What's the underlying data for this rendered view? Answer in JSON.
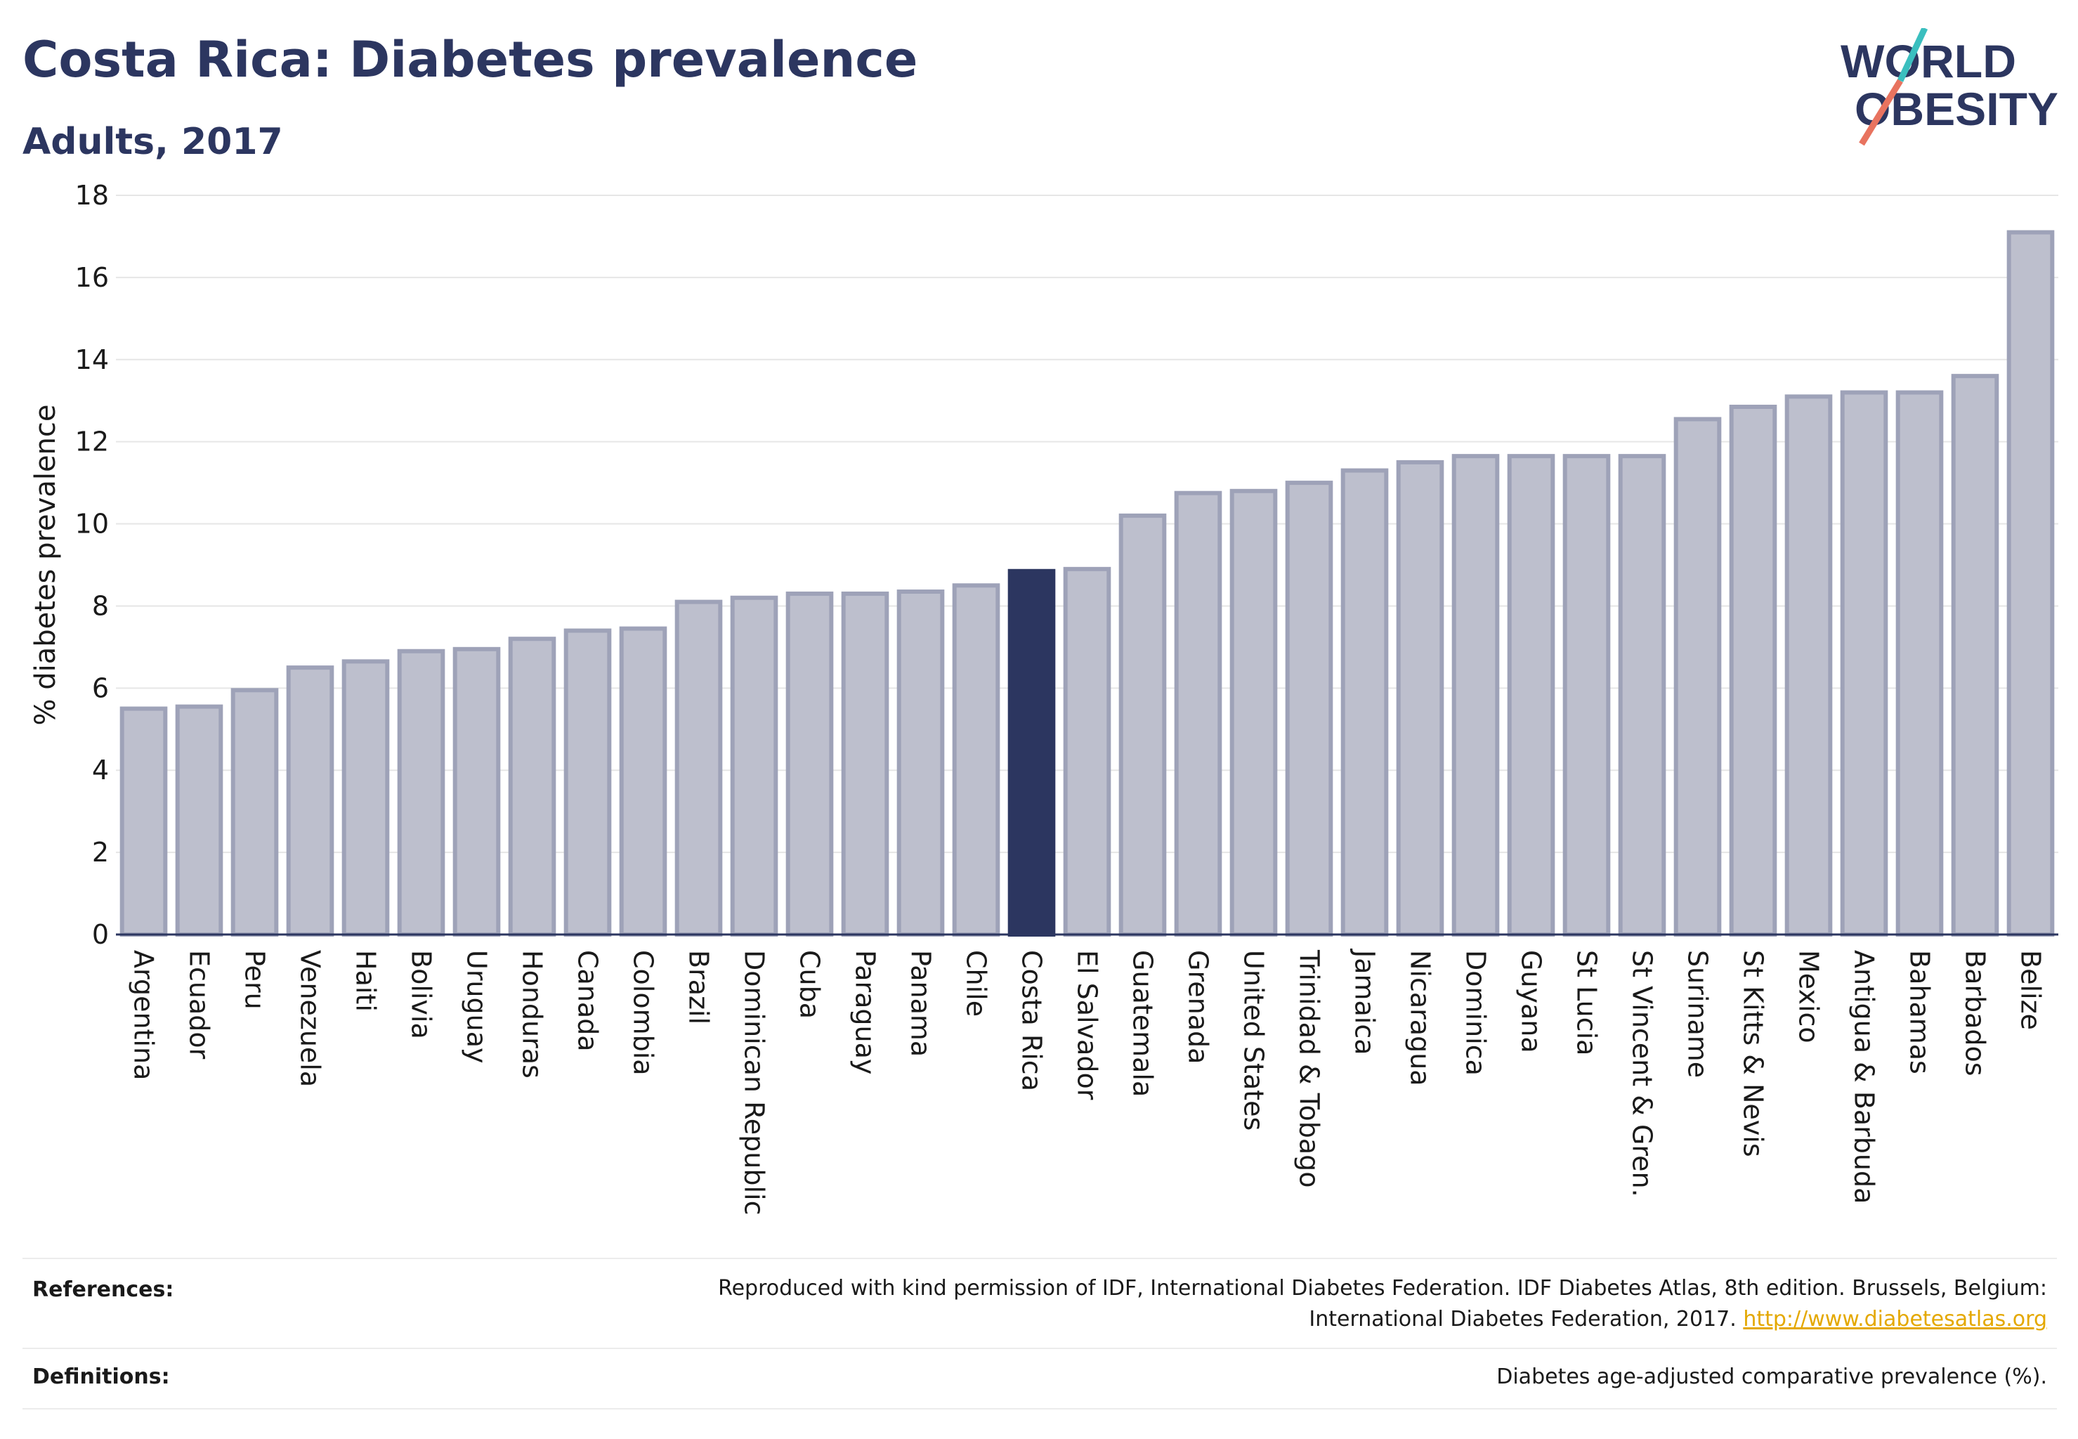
{
  "header": {
    "title": "Costa Rica: Diabetes prevalence",
    "subtitle": "Adults, 2017"
  },
  "logo": {
    "line1": "WORLD",
    "line2": "OBESITY",
    "accent_teal": "#3bbfbf",
    "accent_coral": "#e8735f"
  },
  "colors": {
    "bar": "#bdbfcd",
    "bar_border": "#9ea2b8",
    "highlight": "#2c3660",
    "grid": "#e6e6e6",
    "text": "#2c3660"
  },
  "chart_data": {
    "type": "bar",
    "ylabel": "% diabetes prevalence",
    "ylim": [
      0,
      18
    ],
    "yticks": [
      0,
      2,
      4,
      6,
      8,
      10,
      12,
      14,
      16,
      18
    ],
    "grid": true,
    "highlight": "Costa Rica",
    "categories": [
      "Argentina",
      "Ecuador",
      "Peru",
      "Venezuela",
      "Haiti",
      "Bolivia",
      "Uruguay",
      "Honduras",
      "Canada",
      "Colombia",
      "Brazil",
      "Dominican Republic",
      "Cuba",
      "Paraguay",
      "Panama",
      "Chile",
      "Costa Rica",
      "El Salvador",
      "Guatemala",
      "Grenada",
      "United States",
      "Trinidad & Tobago",
      "Jamaica",
      "Nicaragua",
      "Dominica",
      "Guyana",
      "St Lucia",
      "St Vincent & Gren.",
      "Suriname",
      "St Kitts & Nevis",
      "Mexico",
      "Antigua & Barbuda",
      "Bahamas",
      "Barbados",
      "Belize"
    ],
    "values": [
      5.5,
      5.55,
      5.95,
      6.5,
      6.65,
      6.9,
      6.95,
      7.2,
      7.4,
      7.45,
      8.1,
      8.2,
      8.3,
      8.3,
      8.35,
      8.5,
      8.85,
      8.9,
      10.2,
      10.75,
      10.8,
      11.0,
      11.3,
      11.5,
      11.65,
      11.65,
      11.65,
      11.65,
      12.55,
      12.85,
      13.1,
      13.2,
      13.2,
      13.6,
      17.1
    ]
  },
  "footer": {
    "references_label": "References:",
    "references_line1": "Reproduced with kind permission of IDF, International Diabetes Federation. IDF Diabetes Atlas, 8th edition. Brussels, Belgium:",
    "references_line2": "International Diabetes Federation, 2017.",
    "references_link": "http://www.diabetesatlas.org",
    "definitions_label": "Definitions:",
    "definitions_text": "Diabetes age-adjusted comparative prevalence (%)."
  }
}
